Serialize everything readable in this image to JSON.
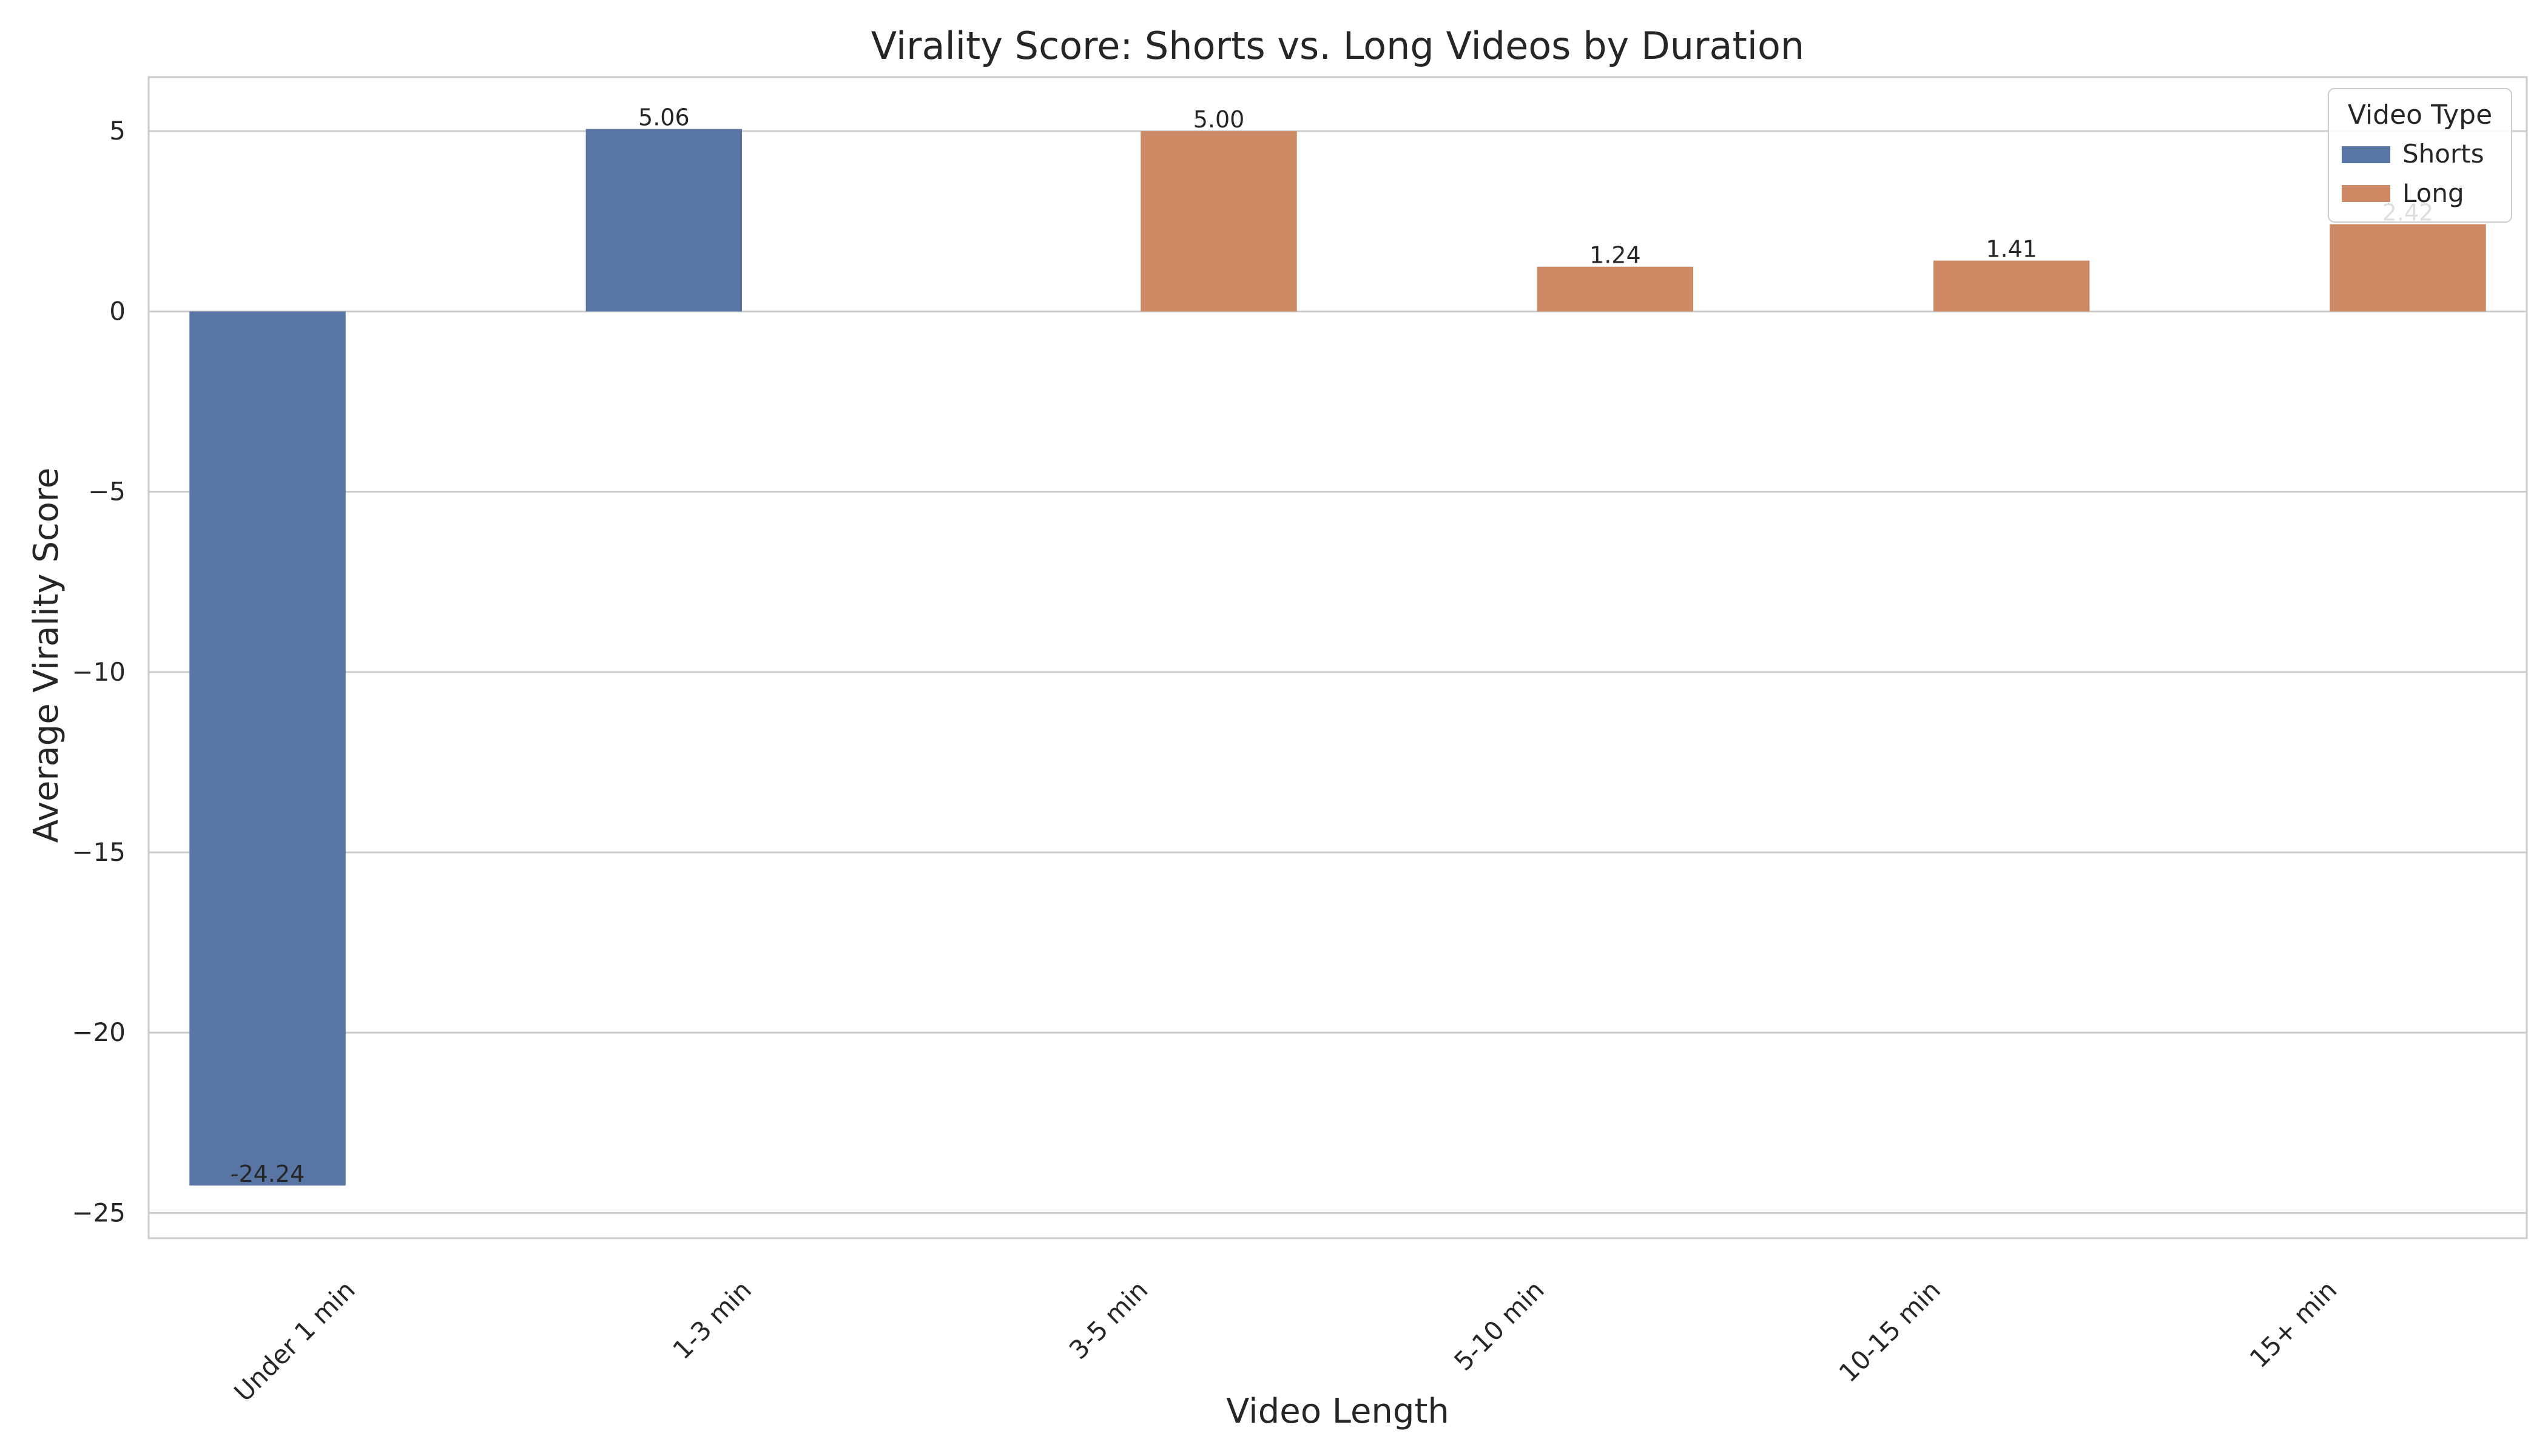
{
  "chart_data": {
    "type": "bar",
    "title": "Virality Score: Shorts vs. Long Videos by Duration",
    "xlabel": "Video Length",
    "ylabel": "Average Virality Score",
    "categories": [
      "Under 1 min",
      "1-3 min",
      "3-5 min",
      "5-10 min",
      "10-15 min",
      "15+ min"
    ],
    "series": [
      {
        "name": "Shorts",
        "color": "#5875a4",
        "values": [
          -24.24,
          5.06,
          null,
          null,
          null,
          null
        ]
      },
      {
        "name": "Long",
        "color": "#cc8963",
        "values": [
          null,
          null,
          5.0,
          1.24,
          1.41,
          2.42
        ]
      }
    ],
    "data_labels": [
      "-24.24",
      "5.06",
      "5.00",
      "1.24",
      "1.41",
      "2.42"
    ],
    "ylim": [
      -25.7,
      6.5
    ],
    "yticks": [
      5,
      0,
      -5,
      -10,
      -15,
      -20,
      -25
    ],
    "ytick_labels": [
      "5",
      "0",
      "−5",
      "−10",
      "−15",
      "−20",
      "−25"
    ],
    "grid": true,
    "legend": {
      "title": "Video Type",
      "placement": "top-right"
    }
  }
}
